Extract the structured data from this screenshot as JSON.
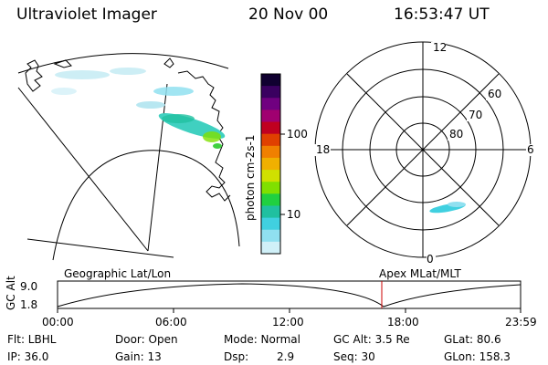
{
  "header": {
    "title": "Ultraviolet Imager",
    "date": "20 Nov 00",
    "time": "16:53:47 UT"
  },
  "colorbar": {
    "unit_label": "photon cm-2s-1",
    "ticks": [
      "100",
      "10"
    ],
    "colors": [
      "#100030",
      "#3a0060",
      "#700080",
      "#a00070",
      "#c00020",
      "#e04000",
      "#f08000",
      "#f0b000",
      "#d0e000",
      "#80e000",
      "#20d040",
      "#20c0a0",
      "#40d0e0",
      "#90e0f0",
      "#d0f0f8"
    ]
  },
  "polar_plot": {
    "mlt_labels": [
      "12",
      "18",
      "6",
      "0"
    ],
    "lat_labels": [
      "60",
      "70",
      "80"
    ]
  },
  "timeline": {
    "panel_left_label": "Geographic Lat/Lon",
    "panel_right_label": "Apex MLat/MLT",
    "axis_label": "GC Alt",
    "y_ticks": [
      "9.0",
      "1.8"
    ],
    "x_ticks": [
      "00:00",
      "06:00",
      "12:00",
      "18:00",
      "23:59"
    ],
    "marker_color": "#cc0000"
  },
  "info": {
    "flt": "Flt: LBHL",
    "ip": "IP: 36.0",
    "door": "Door: Open",
    "gain": "Gain: 13",
    "mode": "Mode: Normal",
    "dsp_label": "Dsp:",
    "dsp_value": "2.9",
    "gc_alt": "GC Alt: 3.5 Re",
    "seq": "Seq: 30",
    "glat": "GLat:  80.6",
    "glon": "GLon: 158.3"
  }
}
